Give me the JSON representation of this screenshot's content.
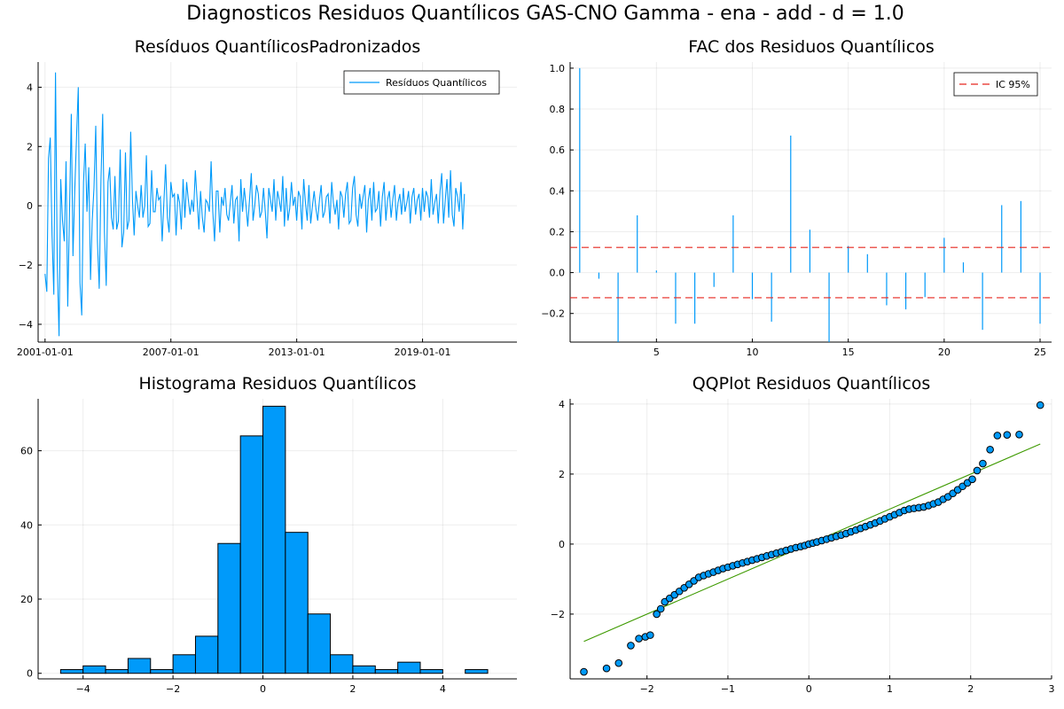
{
  "suptitle": "Diagnosticos Residuos  Quantílicos GAS-CNO Gamma - ena - add - d = 1.0",
  "colors": {
    "series": "#009AFA",
    "band": "#E6261F",
    "line": "#3E9A00",
    "barEdge": "#000000"
  },
  "chart_data": [
    {
      "type": "line",
      "title": "Resíduos  QuantílicosPadronizados",
      "legend": [
        "Resíduos Quantílicos"
      ],
      "legend_position": "top-right",
      "grid": true,
      "xlim": [
        2000.67,
        2023.5
      ],
      "ylim": [
        -4.6,
        4.85
      ],
      "x_ticks": [
        2001,
        2007,
        2013,
        2019
      ],
      "x_tick_labels": [
        "2001-01-01",
        "2007-01-01",
        "2013-01-01",
        "2019-01-01"
      ],
      "y_ticks": [
        -4,
        -2,
        0,
        2,
        4
      ],
      "y_tick_labels": [
        "−4",
        "−2",
        "0",
        "2",
        "4"
      ],
      "x_start": 2001.0,
      "x_step": 0.08333,
      "y": [
        -2.3,
        -2.9,
        1.6,
        2.3,
        -1.0,
        -3.0,
        4.5,
        -2.0,
        -4.4,
        0.9,
        -0.5,
        -1.2,
        1.5,
        -3.4,
        -0.2,
        3.1,
        -1.7,
        0.5,
        2.3,
        4.0,
        -2.6,
        -3.7,
        0.8,
        2.1,
        -0.2,
        1.3,
        -2.5,
        -0.5,
        0.6,
        2.7,
        -1.2,
        -2.8,
        0.9,
        3.1,
        -0.9,
        -2.7,
        0.8,
        1.3,
        -0.4,
        -0.8,
        1.0,
        -0.8,
        -0.5,
        1.9,
        -1.4,
        -0.9,
        1.8,
        -0.8,
        -0.5,
        2.5,
        0.2,
        -1.0,
        0.5,
        0.0,
        -0.4,
        0.7,
        -0.4,
        0.0,
        1.7,
        -0.7,
        -0.6,
        1.2,
        -0.2,
        -0.2,
        0.6,
        0.2,
        0.3,
        -1.2,
        0.1,
        1.4,
        -0.4,
        -0.9,
        0.8,
        0.3,
        0.4,
        -1.0,
        0.4,
        0.1,
        -0.8,
        0.9,
        -0.4,
        0.8,
        0.2,
        -0.3,
        0.2,
        -0.2,
        1.2,
        0.2,
        -0.8,
        0.5,
        -0.4,
        -0.9,
        0.2,
        0.1,
        -0.2,
        1.5,
        -0.2,
        -1.2,
        0.5,
        0.5,
        -0.9,
        0.3,
        0.0,
        0.6,
        -0.3,
        -0.5,
        0.1,
        0.7,
        -0.6,
        0.2,
        0.3,
        -1.2,
        0.9,
        -0.2,
        0.6,
        0.0,
        -0.7,
        0.2,
        1.1,
        -0.5,
        0.0,
        0.7,
        0.4,
        -0.4,
        -0.2,
        0.6,
        -0.2,
        -1.1,
        0.6,
        0.2,
        -0.2,
        0.9,
        -0.5,
        0.5,
        0.2,
        -0.2,
        1.0,
        -0.7,
        0.6,
        -0.5,
        -0.1,
        0.8,
        0.0,
        0.3,
        -0.5,
        0.5,
        0.3,
        -0.8,
        0.9,
        0.1,
        -0.5,
        0.7,
        -0.6,
        0.0,
        0.5,
        -0.1,
        -0.5,
        0.2,
        0.7,
        -0.4,
        -0.2,
        0.3,
        0.4,
        -0.6,
        0.8,
        0.1,
        -0.3,
        0.2,
        -0.8,
        0.5,
        0.3,
        -0.4,
        0.4,
        0.8,
        -0.6,
        -0.5,
        0.6,
        1.0,
        -0.3,
        -0.7,
        0.4,
        -0.1,
        0.3,
        0.7,
        -0.9,
        0.2,
        0.6,
        -0.5,
        0.8,
        -0.2,
        -0.1,
        0.5,
        -0.7,
        0.3,
        0.8,
        -0.5,
        0.2,
        0.5,
        -0.4,
        0.2,
        0.7,
        -0.5,
        0.1,
        0.4,
        -0.3,
        0.6,
        -0.2,
        0.1,
        0.5,
        -0.6,
        0.3,
        0.6,
        -0.3,
        0.2,
        0.4,
        -0.5,
        0.6,
        -0.2,
        0.5,
        0.3,
        -0.4,
        0.9,
        -0.3,
        0.1,
        0.4,
        -0.6,
        0.5,
        1.1,
        -0.6,
        0.2,
        0.9,
        -0.4,
        1.2,
        -0.3,
        -0.7,
        0.6,
        0.3,
        -0.2,
        0.8,
        -0.8,
        0.4
      ]
    },
    {
      "type": "bar",
      "title": "FAC dos Residuos Quantílicos",
      "legend": [
        "IC 95%"
      ],
      "legend_position": "top-right",
      "grid": true,
      "xlim": [
        0.5,
        25.6
      ],
      "ylim": [
        -0.34,
        1.03
      ],
      "x_ticks": [
        5,
        10,
        15,
        20,
        25
      ],
      "x_tick_labels": [
        "5",
        "10",
        "15",
        "20",
        "25"
      ],
      "y_ticks": [
        -0.2,
        0.0,
        0.2,
        0.4,
        0.6,
        0.8,
        1.0
      ],
      "y_tick_labels": [
        "−0.2",
        "0.0",
        "0.2",
        "0.4",
        "0.6",
        "0.8",
        "1.0"
      ],
      "lags": [
        1,
        2,
        3,
        4,
        5,
        6,
        7,
        8,
        9,
        10,
        11,
        12,
        13,
        14,
        15,
        16,
        17,
        18,
        19,
        20,
        21,
        22,
        23,
        24,
        25
      ],
      "values": [
        1.0,
        -0.03,
        -0.34,
        0.28,
        0.01,
        -0.25,
        -0.25,
        -0.07,
        0.28,
        -0.13,
        -0.24,
        0.67,
        0.21,
        -0.34,
        0.13,
        0.09,
        -0.16,
        -0.18,
        -0.12,
        0.17,
        0.05,
        -0.28,
        0.33,
        0.35,
        -0.25
      ],
      "confidence_band": 0.123
    },
    {
      "type": "bar",
      "title": "Histograma Residuos Quantílicos",
      "grid": true,
      "xlim": [
        -5.0,
        5.65
      ],
      "ylim": [
        -1.5,
        74
      ],
      "x_ticks": [
        -4,
        -2,
        0,
        2,
        4
      ],
      "x_tick_labels": [
        "−4",
        "−2",
        "0",
        "2",
        "4"
      ],
      "y_ticks": [
        0,
        20,
        40,
        60
      ],
      "y_tick_labels": [
        "0",
        "20",
        "40",
        "60"
      ],
      "bin_edges": [
        -4.5,
        -4.0,
        -3.5,
        -3.0,
        -2.5,
        -2.0,
        -1.5,
        -1.0,
        -0.5,
        0.0,
        0.5,
        1.0,
        1.5,
        2.0,
        2.5,
        3.0,
        3.5,
        4.0,
        4.5,
        5.0
      ],
      "counts": [
        1,
        2,
        1,
        4,
        1,
        5,
        10,
        35,
        64,
        72,
        38,
        16,
        5,
        2,
        1,
        3,
        1,
        0,
        1
      ]
    },
    {
      "type": "scatter",
      "title": "QQPlot Residuos Quantílicos",
      "grid": true,
      "xlim": [
        -2.95,
        3.0
      ],
      "ylim": [
        -3.85,
        4.15
      ],
      "x_ticks": [
        -2,
        -1,
        0,
        1,
        2,
        3
      ],
      "x_tick_labels": [
        "−2",
        "−1",
        "0",
        "1",
        "2",
        "3"
      ],
      "y_ticks": [
        -2,
        0,
        2,
        4
      ],
      "y_tick_labels": [
        "−2",
        "0",
        "2",
        "4"
      ],
      "points": [
        [
          -2.78,
          -3.65
        ],
        [
          -2.5,
          -3.55
        ],
        [
          -2.35,
          -3.4
        ],
        [
          -2.2,
          -2.9
        ],
        [
          -2.1,
          -2.7
        ],
        [
          -2.02,
          -2.65
        ],
        [
          -1.96,
          -2.6
        ],
        [
          -1.88,
          -2.0
        ],
        [
          -1.83,
          -1.85
        ],
        [
          -1.78,
          -1.65
        ],
        [
          -1.72,
          -1.55
        ],
        [
          -1.66,
          -1.45
        ],
        [
          -1.6,
          -1.35
        ],
        [
          -1.54,
          -1.25
        ],
        [
          -1.48,
          -1.15
        ],
        [
          -1.42,
          -1.05
        ],
        [
          -1.36,
          -0.95
        ],
        [
          -1.3,
          -0.9
        ],
        [
          -1.24,
          -0.85
        ],
        [
          -1.18,
          -0.8
        ],
        [
          -1.12,
          -0.75
        ],
        [
          -1.06,
          -0.7
        ],
        [
          -1.0,
          -0.66
        ],
        [
          -0.94,
          -0.62
        ],
        [
          -0.88,
          -0.58
        ],
        [
          -0.82,
          -0.54
        ],
        [
          -0.76,
          -0.5
        ],
        [
          -0.7,
          -0.46
        ],
        [
          -0.64,
          -0.42
        ],
        [
          -0.58,
          -0.38
        ],
        [
          -0.52,
          -0.34
        ],
        [
          -0.46,
          -0.3
        ],
        [
          -0.4,
          -0.26
        ],
        [
          -0.34,
          -0.22
        ],
        [
          -0.28,
          -0.18
        ],
        [
          -0.22,
          -0.14
        ],
        [
          -0.16,
          -0.1
        ],
        [
          -0.1,
          -0.07
        ],
        [
          -0.05,
          -0.04
        ],
        [
          0.0,
          0.0
        ],
        [
          0.05,
          0.03
        ],
        [
          0.1,
          0.06
        ],
        [
          0.16,
          0.1
        ],
        [
          0.22,
          0.14
        ],
        [
          0.28,
          0.18
        ],
        [
          0.34,
          0.22
        ],
        [
          0.4,
          0.26
        ],
        [
          0.46,
          0.3
        ],
        [
          0.52,
          0.35
        ],
        [
          0.58,
          0.4
        ],
        [
          0.64,
          0.45
        ],
        [
          0.7,
          0.5
        ],
        [
          0.76,
          0.55
        ],
        [
          0.82,
          0.6
        ],
        [
          0.88,
          0.66
        ],
        [
          0.94,
          0.72
        ],
        [
          1.0,
          0.78
        ],
        [
          1.06,
          0.84
        ],
        [
          1.12,
          0.9
        ],
        [
          1.18,
          0.96
        ],
        [
          1.24,
          1.0
        ],
        [
          1.3,
          1.02
        ],
        [
          1.36,
          1.04
        ],
        [
          1.42,
          1.06
        ],
        [
          1.48,
          1.1
        ],
        [
          1.54,
          1.15
        ],
        [
          1.6,
          1.2
        ],
        [
          1.66,
          1.28
        ],
        [
          1.72,
          1.35
        ],
        [
          1.78,
          1.45
        ],
        [
          1.84,
          1.55
        ],
        [
          1.9,
          1.65
        ],
        [
          1.96,
          1.75
        ],
        [
          2.02,
          1.85
        ],
        [
          2.08,
          2.1
        ],
        [
          2.15,
          2.3
        ],
        [
          2.24,
          2.7
        ],
        [
          2.33,
          3.1
        ],
        [
          2.45,
          3.12
        ],
        [
          2.6,
          3.13
        ],
        [
          2.86,
          3.97
        ]
      ],
      "reference_line": [
        [
          -2.78,
          -2.78
        ],
        [
          2.86,
          2.86
        ]
      ]
    }
  ]
}
